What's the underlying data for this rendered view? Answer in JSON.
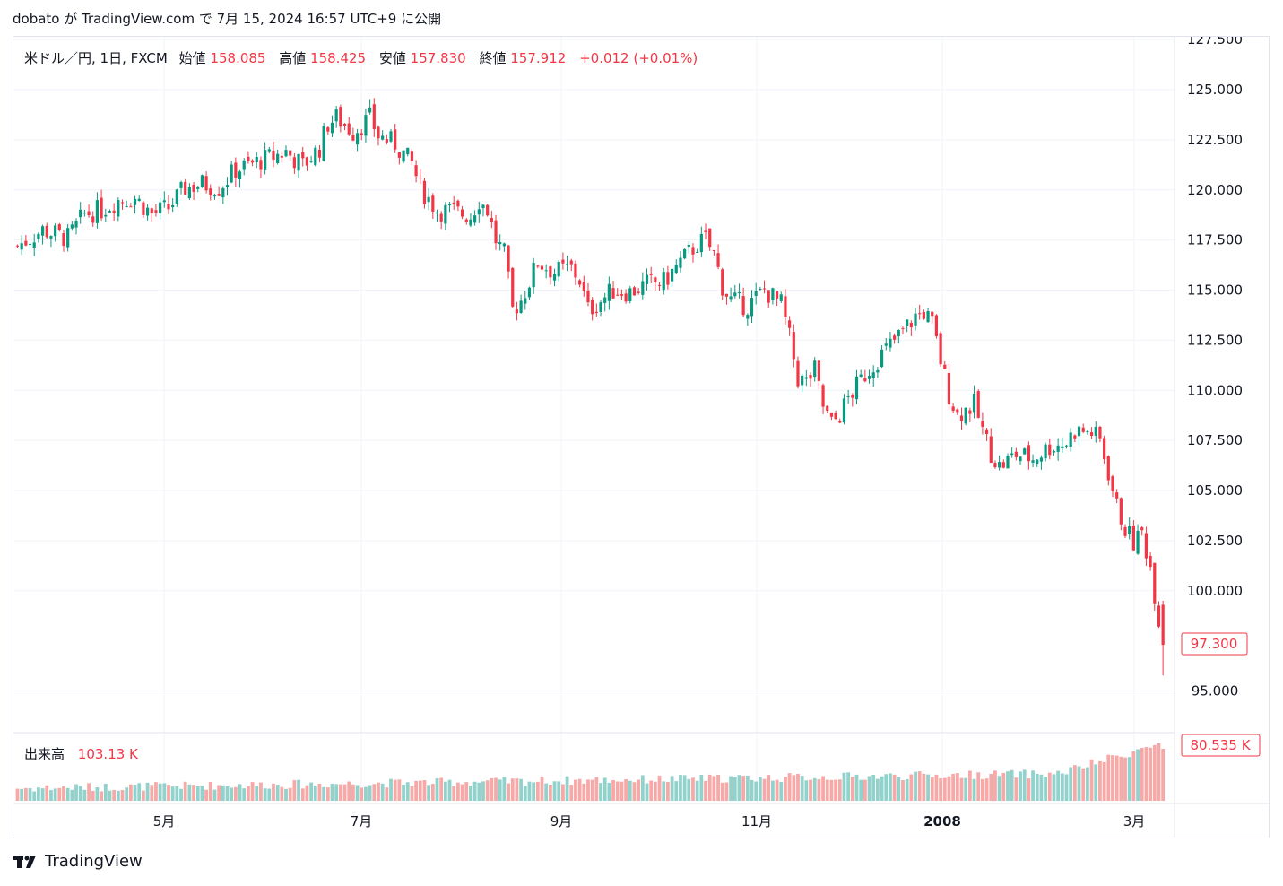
{
  "header": {
    "text": "dobato が TradingView.com で 7月 15, 2024 16:57 UTC+9 に公開"
  },
  "legend": {
    "symbol": "米ドル／円, 1日, FXCM",
    "open_label": "始値",
    "open_value": "158.085",
    "high_label": "高値",
    "high_value": "158.425",
    "low_label": "安値",
    "low_value": "157.830",
    "close_label": "終値",
    "close_value": "157.912",
    "change": "+0.012 (+0.01%)"
  },
  "volume": {
    "label": "出来高",
    "value": "103.13 K",
    "last_badge": "80.535 K"
  },
  "price_badge": "97.300",
  "footer": {
    "brand": "TradingView"
  },
  "colors": {
    "up": "#089981",
    "down": "#f23645",
    "up_vol": "#92d2cc",
    "down_vol": "#f7a9a7",
    "grid": "#f0f3fa",
    "text": "#131722"
  },
  "chart_data": {
    "type": "candlestick",
    "y_ticks": [
      "127.500",
      "125.000",
      "122.500",
      "120.000",
      "117.500",
      "115.000",
      "112.500",
      "110.000",
      "107.500",
      "105.000",
      "102.500",
      "100.000",
      "95.000"
    ],
    "x_ticks": [
      "5月",
      "7月",
      "9月",
      "11月",
      "2008",
      "3月"
    ],
    "ylim": [
      95.0,
      127.5
    ],
    "last_price": 97.3,
    "price_path": [
      [
        0,
        117.2
      ],
      [
        6,
        118.0
      ],
      [
        12,
        117.6
      ],
      [
        16,
        118.8
      ],
      [
        20,
        119.0
      ],
      [
        24,
        119.5
      ],
      [
        28,
        119.6
      ],
      [
        32,
        118.8
      ],
      [
        36,
        119.1
      ],
      [
        40,
        120.1
      ],
      [
        44,
        120.3
      ],
      [
        48,
        120.1
      ],
      [
        52,
        121.0
      ],
      [
        56,
        121.3
      ],
      [
        60,
        121.6
      ],
      [
        64,
        121.9
      ],
      [
        68,
        121.2
      ],
      [
        72,
        122.1
      ],
      [
        74,
        123.3
      ],
      [
        76,
        123.6
      ],
      [
        80,
        122.9
      ],
      [
        84,
        123.6
      ],
      [
        86,
        122.7
      ],
      [
        90,
        122.3
      ],
      [
        94,
        121.3
      ],
      [
        96,
        120.1
      ],
      [
        100,
        119.0
      ],
      [
        104,
        118.9
      ],
      [
        108,
        118.7
      ],
      [
        110,
        119.5
      ],
      [
        112,
        119.0
      ],
      [
        114,
        117.5
      ],
      [
        116,
        116.8
      ],
      [
        118,
        114.0
      ],
      [
        120,
        114.5
      ],
      [
        124,
        116.4
      ],
      [
        128,
        115.9
      ],
      [
        132,
        116.1
      ],
      [
        134,
        115.5
      ],
      [
        136,
        114.0
      ],
      [
        138,
        114.3
      ],
      [
        142,
        115.0
      ],
      [
        146,
        114.9
      ],
      [
        150,
        115.3
      ],
      [
        154,
        115.4
      ],
      [
        158,
        116.4
      ],
      [
        162,
        117.3
      ],
      [
        164,
        117.5
      ],
      [
        166,
        116.8
      ],
      [
        168,
        115.2
      ],
      [
        170,
        114.5
      ],
      [
        174,
        114.2
      ],
      [
        178,
        115.0
      ],
      [
        182,
        114.3
      ],
      [
        184,
        112.6
      ],
      [
        186,
        110.6
      ],
      [
        188,
        110.4
      ],
      [
        190,
        111.0
      ],
      [
        192,
        109.2
      ],
      [
        194,
        108.3
      ],
      [
        196,
        108.8
      ],
      [
        198,
        109.6
      ],
      [
        202,
        110.8
      ],
      [
        206,
        111.8
      ],
      [
        210,
        112.7
      ],
      [
        214,
        113.7
      ],
      [
        216,
        113.9
      ],
      [
        218,
        113.3
      ],
      [
        220,
        111.5
      ],
      [
        222,
        109.8
      ],
      [
        224,
        108.8
      ],
      [
        228,
        109.3
      ],
      [
        230,
        108.0
      ],
      [
        232,
        106.9
      ],
      [
        234,
        106.2
      ],
      [
        238,
        106.8
      ],
      [
        242,
        106.6
      ],
      [
        246,
        107.2
      ],
      [
        250,
        107.4
      ],
      [
        252,
        108.0
      ],
      [
        256,
        107.9
      ],
      [
        258,
        107.5
      ],
      [
        260,
        105.9
      ],
      [
        262,
        104.2
      ],
      [
        264,
        103.1
      ],
      [
        266,
        102.4
      ],
      [
        268,
        102.9
      ],
      [
        270,
        101.2
      ],
      [
        272,
        98.6
      ],
      [
        273,
        97.3
      ]
    ],
    "series": [
      {
        "name": "米ドル／円, 1日, FXCM"
      }
    ]
  }
}
